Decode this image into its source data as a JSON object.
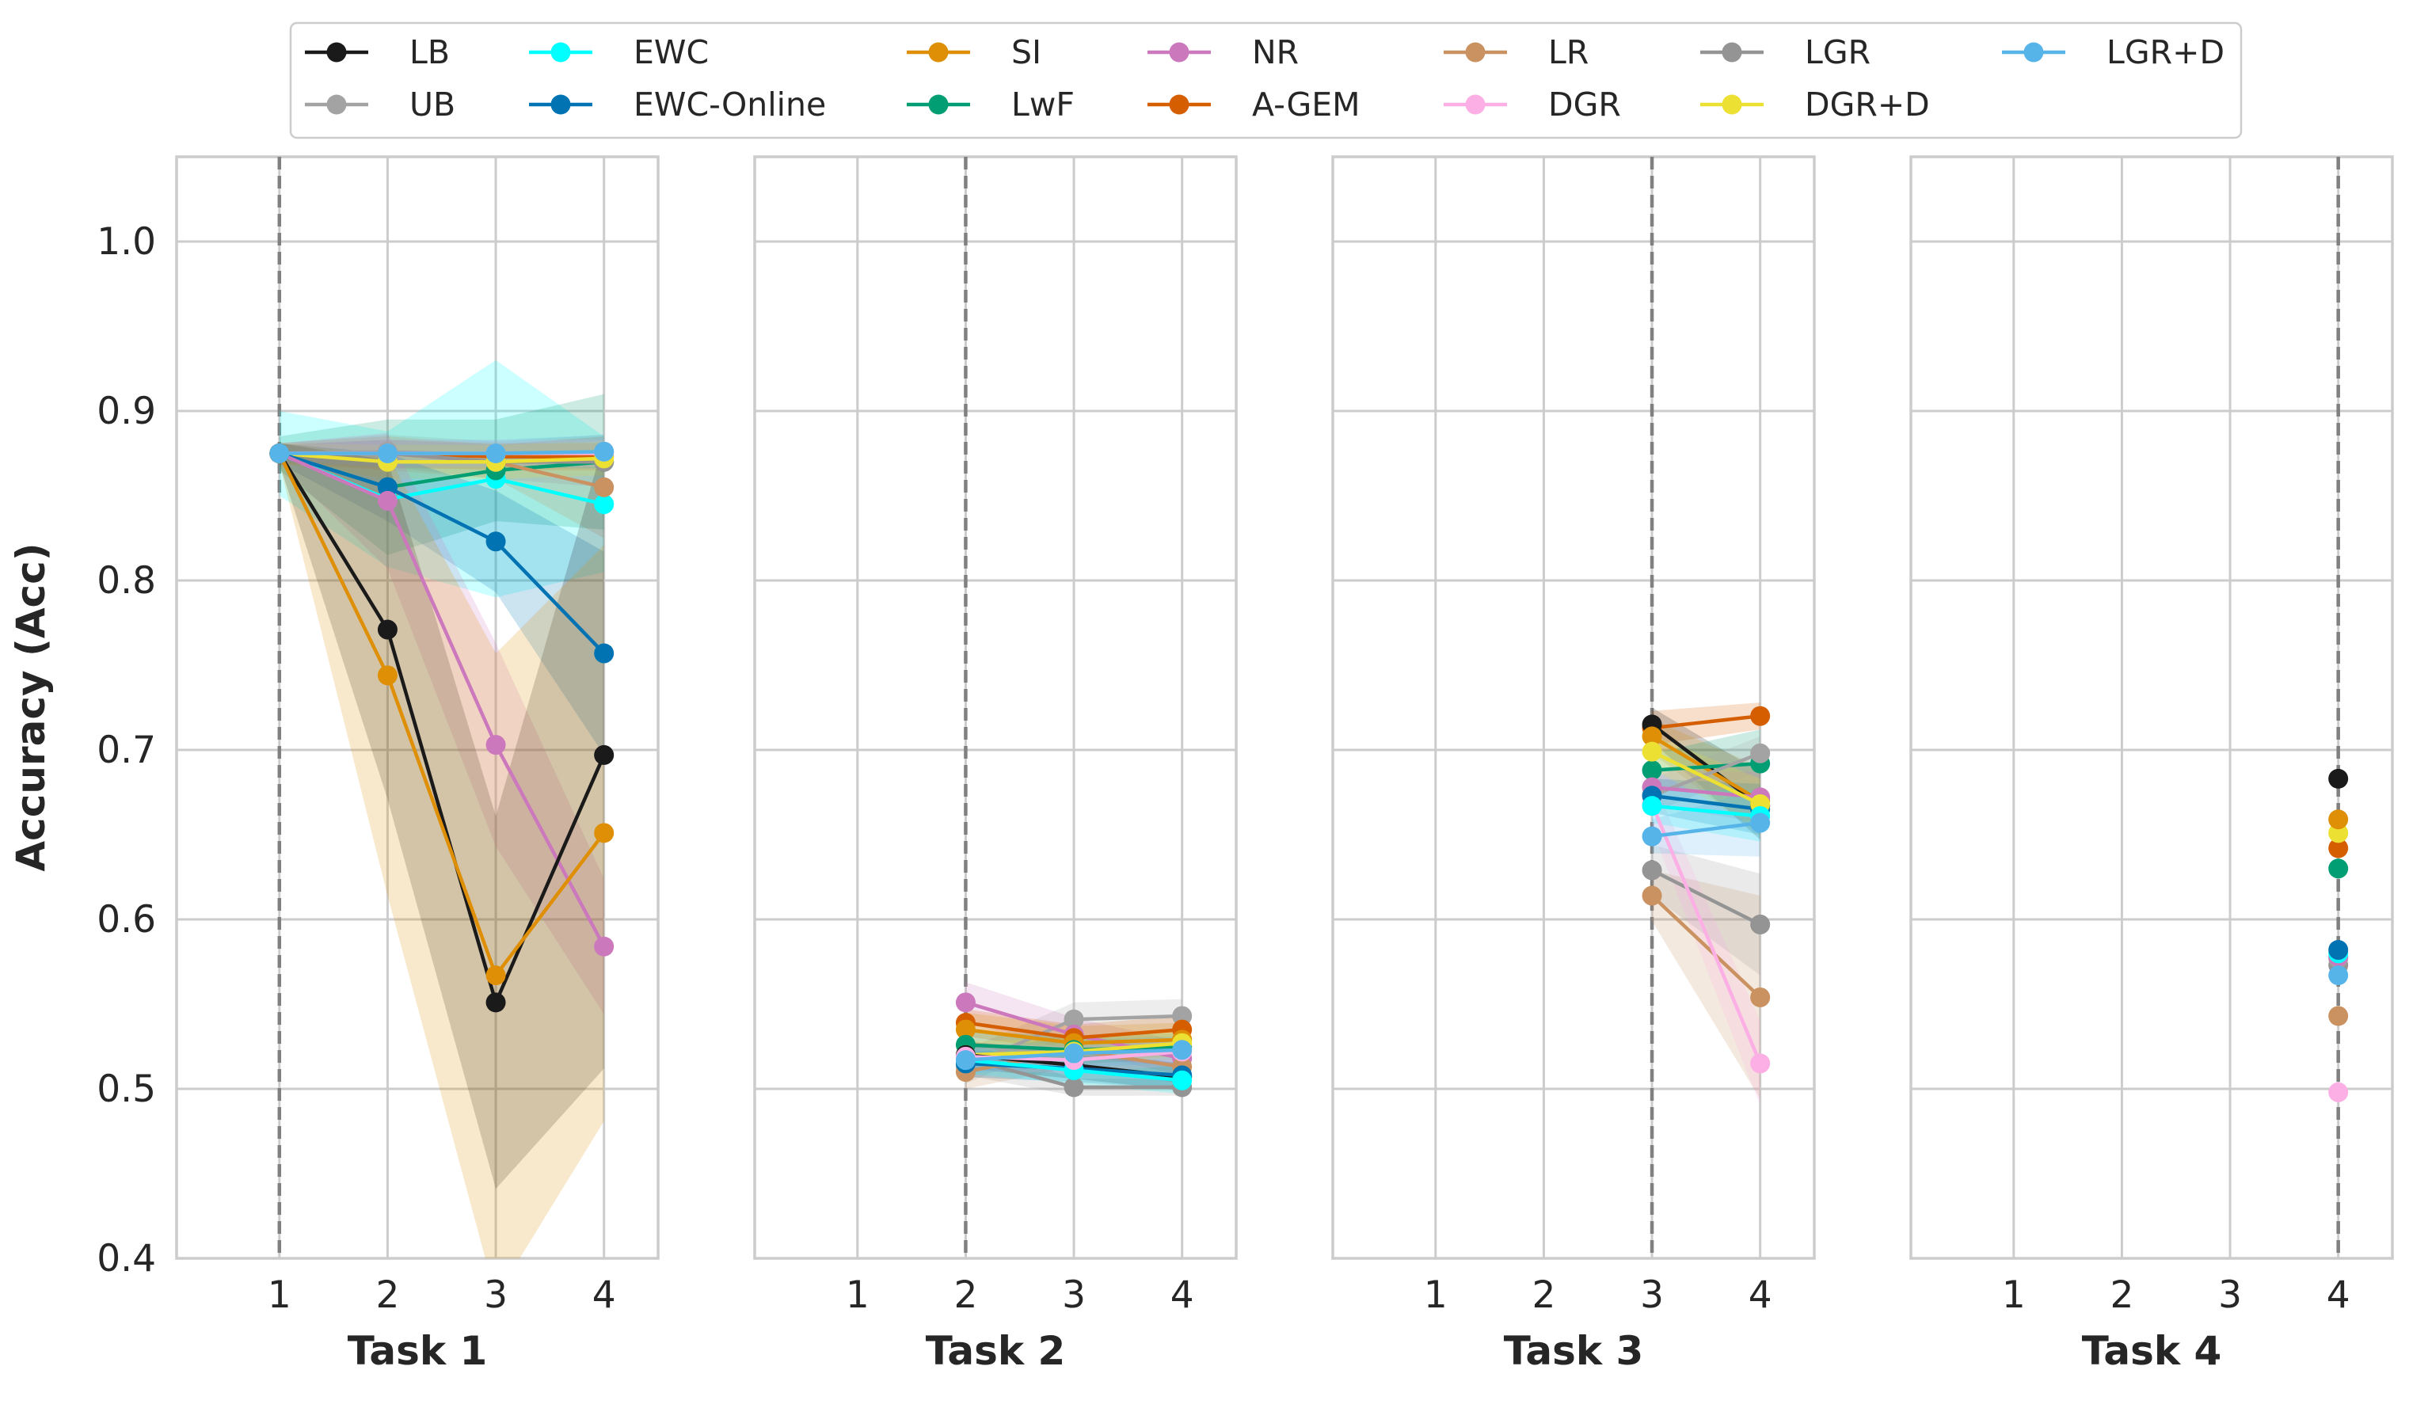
{
  "chart_data": {
    "type": "line",
    "ylabel": "Accuracy (Acc)",
    "ylim": [
      0.4,
      1.05
    ],
    "yticks": [
      0.4,
      0.5,
      0.6,
      0.7,
      0.8,
      0.9,
      1.0
    ],
    "ytick_labels": [
      "0.4",
      "0.5",
      "0.6",
      "0.7",
      "0.8",
      "0.9",
      "1.0"
    ],
    "xticks": [
      1,
      2,
      3,
      4
    ],
    "xtick_labels": [
      "1",
      "2",
      "3",
      "4"
    ],
    "xlim": [
      0.05,
      4.5
    ],
    "grid": true,
    "legend_position": "top",
    "series_styles": [
      {
        "name": "LB",
        "color": "#1a1a1a"
      },
      {
        "name": "UB",
        "color": "#a3a3a3"
      },
      {
        "name": "EWC",
        "color": "#00ffff"
      },
      {
        "name": "EWC-Online",
        "color": "#0173b2"
      },
      {
        "name": "SI",
        "color": "#de8f05"
      },
      {
        "name": "LwF",
        "color": "#029e73"
      },
      {
        "name": "NR",
        "color": "#cc78bc"
      },
      {
        "name": "A-GEM",
        "color": "#d55e00"
      },
      {
        "name": "LR",
        "color": "#ca9161"
      },
      {
        "name": "DGR",
        "color": "#fbafe4"
      },
      {
        "name": "LGR",
        "color": "#949494"
      },
      {
        "name": "DGR+D",
        "color": "#ece133"
      },
      {
        "name": "LGR+D",
        "color": "#56b4e9"
      }
    ],
    "panels": [
      {
        "xlabel": "Task 1",
        "start": 1,
        "x": [
          1,
          2,
          3,
          4
        ],
        "series": [
          {
            "name": "EWC",
            "values": [
              0.875,
              0.848,
              0.86,
              0.845
            ],
            "band": [
              0.025,
              0.04,
              0.07,
              0.04
            ]
          },
          {
            "name": "UB",
            "values": [
              0.875,
              0.876,
              0.874,
              0.876
            ],
            "band": [
              0.006,
              0.01,
              0.008,
              0.01
            ]
          },
          {
            "name": "LwF",
            "values": [
              0.875,
              0.855,
              0.865,
              0.87
            ],
            "band": [
              0.01,
              0.04,
              0.03,
              0.04
            ]
          },
          {
            "name": "A-GEM",
            "values": [
              0.875,
              0.875,
              0.873,
              0.873
            ],
            "band": [
              0.005,
              0.008,
              0.008,
              0.008
            ]
          },
          {
            "name": "LR",
            "values": [
              0.875,
              0.875,
              0.87,
              0.855
            ],
            "band": [
              0.006,
              0.01,
              0.01,
              0.03
            ]
          },
          {
            "name": "LGR",
            "values": [
              0.875,
              0.875,
              0.87,
              0.87
            ],
            "band": [
              0.005,
              0.008,
              0.01,
              0.015
            ]
          },
          {
            "name": "DGR",
            "values": [
              0.875,
              0.875,
              0.875,
              0.875
            ],
            "band": [
              0.005,
              0.008,
              0.008,
              0.008
            ]
          },
          {
            "name": "DGR+D",
            "values": [
              0.875,
              0.87,
              0.87,
              0.872
            ],
            "band": [
              0.006,
              0.01,
              0.01,
              0.01
            ]
          },
          {
            "name": "EWC-Online",
            "values": [
              0.875,
              0.855,
              0.823,
              0.757
            ],
            "band": [
              0.006,
              0.02,
              0.03,
              0.06
            ]
          },
          {
            "name": "NR",
            "values": [
              0.875,
              0.847,
              0.703,
              0.584
            ],
            "band": [
              0.006,
              0.04,
              0.06,
              0.04
            ]
          },
          {
            "name": "LB",
            "values": [
              0.875,
              0.771,
              0.551,
              0.697
            ],
            "band": [
              0.006,
              0.1,
              0.11,
              0.185
            ]
          },
          {
            "name": "SI",
            "values": [
              0.875,
              0.744,
              0.567,
              0.651
            ],
            "band": [
              0.006,
              0.13,
              0.19,
              0.17
            ]
          },
          {
            "name": "LGR+D",
            "values": [
              0.875,
              0.875,
              0.875,
              0.876
            ],
            "band": [
              0.005,
              0.008,
              0.008,
              0.01
            ]
          }
        ]
      },
      {
        "xlabel": "Task 2",
        "start": 2,
        "x": [
          2,
          3,
          4
        ],
        "series": [
          {
            "name": "UB",
            "values": [
              0.513,
              0.541,
              0.543
            ],
            "band": [
              0.01,
              0.01,
              0.01
            ]
          },
          {
            "name": "LGR",
            "values": [
              0.518,
              0.501,
              0.501
            ],
            "band": [
              0.01,
              0.005,
              0.005
            ]
          },
          {
            "name": "NR",
            "values": [
              0.551,
              0.532,
              0.518
            ],
            "band": [
              0.012,
              0.01,
              0.01
            ]
          },
          {
            "name": "A-GEM",
            "values": [
              0.539,
              0.53,
              0.535
            ],
            "band": [
              0.008,
              0.008,
              0.008
            ]
          },
          {
            "name": "LR",
            "values": [
              0.51,
              0.523,
              0.513
            ],
            "band": [
              0.01,
              0.01,
              0.01
            ]
          },
          {
            "name": "SI",
            "values": [
              0.535,
              0.527,
              0.529
            ],
            "band": [
              0.01,
              0.01,
              0.01
            ]
          },
          {
            "name": "LwF",
            "values": [
              0.526,
              0.523,
              0.525
            ],
            "band": [
              0.008,
              0.008,
              0.008
            ]
          },
          {
            "name": "DGR+D",
            "values": [
              0.52,
              0.522,
              0.527
            ],
            "band": [
              0.008,
              0.008,
              0.008
            ]
          },
          {
            "name": "LB",
            "values": [
              0.52,
              0.514,
              0.507
            ],
            "band": [
              0.008,
              0.008,
              0.008
            ]
          },
          {
            "name": "EWC-Online",
            "values": [
              0.515,
              0.512,
              0.508
            ],
            "band": [
              0.008,
              0.008,
              0.008
            ]
          },
          {
            "name": "EWC",
            "values": [
              0.517,
              0.511,
              0.505
            ],
            "band": [
              0.008,
              0.008,
              0.008
            ]
          },
          {
            "name": "DGR",
            "values": [
              0.519,
              0.517,
              0.522
            ],
            "band": [
              0.008,
              0.008,
              0.008
            ]
          },
          {
            "name": "LGR+D",
            "values": [
              0.517,
              0.521,
              0.523
            ],
            "band": [
              0.008,
              0.008,
              0.008
            ]
          }
        ]
      },
      {
        "xlabel": "Task 3",
        "start": 3,
        "x": [
          3,
          4
        ],
        "series": [
          {
            "name": "LR",
            "values": [
              0.614,
              0.554
            ],
            "band": [
              0.015,
              0.06
            ]
          },
          {
            "name": "LGR",
            "values": [
              0.629,
              0.597
            ],
            "band": [
              0.015,
              0.03
            ]
          },
          {
            "name": "DGR",
            "values": [
              0.668,
              0.515
            ],
            "band": [
              0.015,
              0.025
            ]
          },
          {
            "name": "A-GEM",
            "values": [
              0.713,
              0.72
            ],
            "band": [
              0.01,
              0.008
            ]
          },
          {
            "name": "LB",
            "values": [
              0.715,
              0.667
            ],
            "band": [
              0.01,
              0.02
            ]
          },
          {
            "name": "SI",
            "values": [
              0.708,
              0.67
            ],
            "band": [
              0.01,
              0.02
            ]
          },
          {
            "name": "LwF",
            "values": [
              0.688,
              0.692
            ],
            "band": [
              0.01,
              0.02
            ]
          },
          {
            "name": "UB",
            "values": [
              0.673,
              0.698
            ],
            "band": [
              0.01,
              0.01
            ]
          },
          {
            "name": "NR",
            "values": [
              0.678,
              0.672
            ],
            "band": [
              0.01,
              0.015
            ]
          },
          {
            "name": "EWC-Online",
            "values": [
              0.673,
              0.665
            ],
            "band": [
              0.01,
              0.015
            ]
          },
          {
            "name": "DGR+D",
            "values": [
              0.699,
              0.668
            ],
            "band": [
              0.01,
              0.015
            ]
          },
          {
            "name": "EWC",
            "values": [
              0.667,
              0.661
            ],
            "band": [
              0.01,
              0.015
            ]
          },
          {
            "name": "LGR+D",
            "values": [
              0.649,
              0.657
            ],
            "band": [
              0.01,
              0.02
            ]
          }
        ]
      },
      {
        "xlabel": "Task 4",
        "start": 4,
        "x": [
          4
        ],
        "series": [
          {
            "name": "DGR",
            "values": [
              0.498
            ],
            "band": [
              0
            ]
          },
          {
            "name": "LR",
            "values": [
              0.543
            ],
            "band": [
              0
            ]
          },
          {
            "name": "LGR",
            "values": [
              0.573
            ],
            "band": [
              0
            ]
          },
          {
            "name": "UB",
            "values": [
              0.577
            ],
            "band": [
              0
            ]
          },
          {
            "name": "NR",
            "values": [
              0.578
            ],
            "band": [
              0
            ]
          },
          {
            "name": "EWC",
            "values": [
              0.58
            ],
            "band": [
              0
            ]
          },
          {
            "name": "EWC-Online",
            "values": [
              0.582
            ],
            "band": [
              0
            ]
          },
          {
            "name": "LwF",
            "values": [
              0.63
            ],
            "band": [
              0
            ]
          },
          {
            "name": "A-GEM",
            "values": [
              0.642
            ],
            "band": [
              0
            ]
          },
          {
            "name": "DGR+D",
            "values": [
              0.651
            ],
            "band": [
              0
            ]
          },
          {
            "name": "SI",
            "values": [
              0.659
            ],
            "band": [
              0
            ]
          },
          {
            "name": "LB",
            "values": [
              0.683
            ],
            "band": [
              0
            ]
          },
          {
            "name": "LGR+D",
            "values": [
              0.567
            ],
            "band": [
              0
            ]
          }
        ]
      }
    ]
  }
}
